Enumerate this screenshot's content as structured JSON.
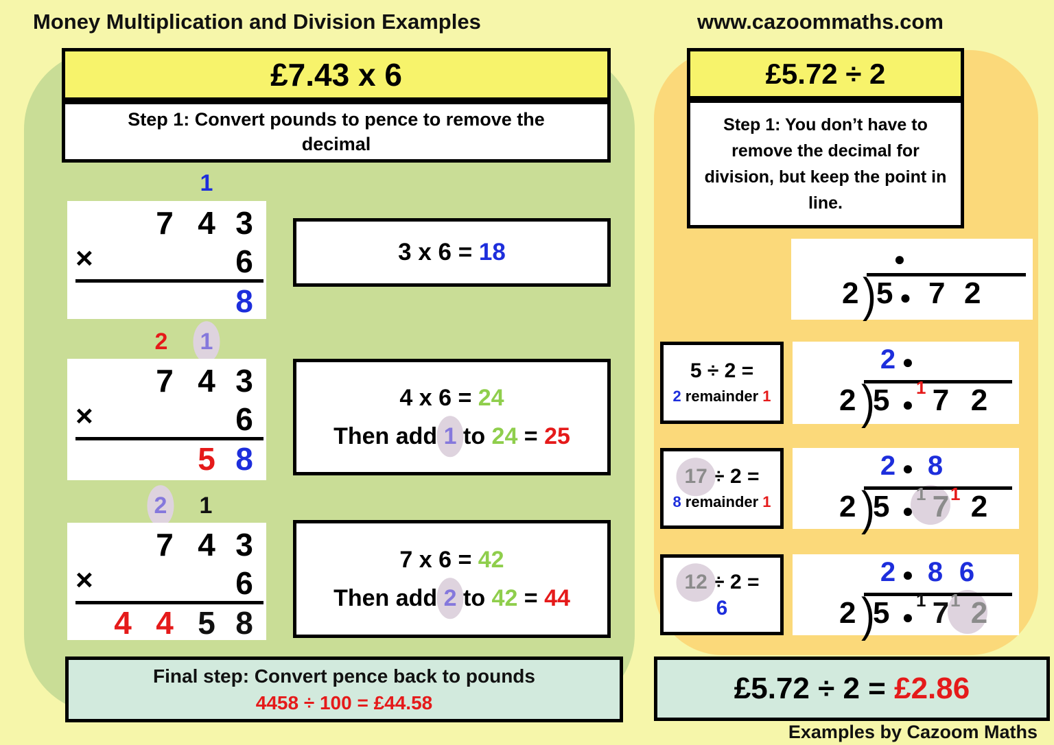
{
  "page": {
    "title": "Money Multiplication and Division Examples",
    "website": "www.cazoommaths.com",
    "credit": "Examples by Cazoom Maths"
  },
  "colors": {
    "background": "#F6F6AA",
    "left_panel_green": "#C9DD96",
    "right_panel_orange": "#FBD97A",
    "header_yellow": "#F7F36B",
    "final_box_teal": "#D2EADD",
    "accent_blue": "#1D2EDC",
    "accent_red": "#E51A1A",
    "accent_green": "#8FCE4C",
    "accent_purple": "#8578DC",
    "carried_grey": "#8B8B8B",
    "highlight_lavender": "#DED3DE"
  },
  "multiplication": {
    "header": "£7.43 x 6",
    "step": "Step 1: Convert pounds to pence to remove the decimal",
    "times_sign": "×",
    "work1": {
      "carry_tens": "1",
      "d1": "7",
      "d2": "4",
      "d3": "3",
      "multiplier": "6",
      "r_ones": "8"
    },
    "eq1": {
      "lhs": "3 x 6 = ",
      "answer": "18"
    },
    "work2": {
      "carry_hundreds": "2",
      "carry_tens": "1",
      "d1": "7",
      "d2": "4",
      "d3": "3",
      "multiplier": "6",
      "r_tens": "5",
      "r_ones": "8"
    },
    "eq2": {
      "lhs": "4 x 6 = ",
      "answer": "24",
      "then1": "Then add ",
      "carry": "1",
      "then2": " to ",
      "base": "24",
      "equals": "  = ",
      "sum": "25"
    },
    "work3": {
      "carry_hundreds": "2",
      "carry_tens": "1",
      "d1": "7",
      "d2": "4",
      "d3": "3",
      "multiplier": "6",
      "r_thousands": "4",
      "r_hundreds": "4",
      "r_tens": "5",
      "r_ones": "8"
    },
    "eq3": {
      "lhs": "7 x 6 = ",
      "answer": "42",
      "then1": "Then add ",
      "carry": "2",
      "then2": " to ",
      "base": "42",
      "equals": "  = ",
      "sum": "44"
    },
    "final": {
      "line1": "Final step: Convert pence back to pounds",
      "line2": "4458  ÷   100 = £44.58"
    }
  },
  "division": {
    "header": "£5.72 ÷ 2",
    "step": "Step 1: You don’t have to remove the decimal for division, but keep the point in line.",
    "bracket": ")",
    "diagram0": {
      "q_dot": "●",
      "divisor": "2",
      "d1": "5",
      "dot": "●",
      "d2": "7",
      "d3": "2"
    },
    "row1": {
      "prompt": "5 ÷ 2 =",
      "ans_q": "2",
      "ans_mid": " remainder ",
      "ans_r": "1",
      "q1": "2",
      "q_dot": "●",
      "divisor": "2",
      "d1": "5",
      "dot": "●",
      "sup1": "1",
      "d2": "7",
      "d3": "2"
    },
    "row2": {
      "prompt_num": "17",
      "prompt_rest": " ÷ 2 =",
      "ans_q": "8",
      "ans_mid": " remainder ",
      "ans_r": "1",
      "q1": "2",
      "q_dot": "●",
      "q2": "8",
      "divisor": "2",
      "d1": "5",
      "dot": "●",
      "sup1": "1",
      "d2": "7",
      "sup2": "1",
      "d3": "2"
    },
    "row3": {
      "prompt_num": "12",
      "prompt_rest": " ÷ 2 =",
      "ans": "6",
      "q1": "2",
      "q_dot": "●",
      "q2": "8",
      "q3": "6",
      "divisor": "2",
      "d1": "5",
      "dot": "●",
      "sup1": "1",
      "d2": "7",
      "sup2": "1",
      "d3": "2"
    },
    "final": {
      "lhs": "£5.72 ÷ 2 = ",
      "answer": "£2.86"
    }
  }
}
